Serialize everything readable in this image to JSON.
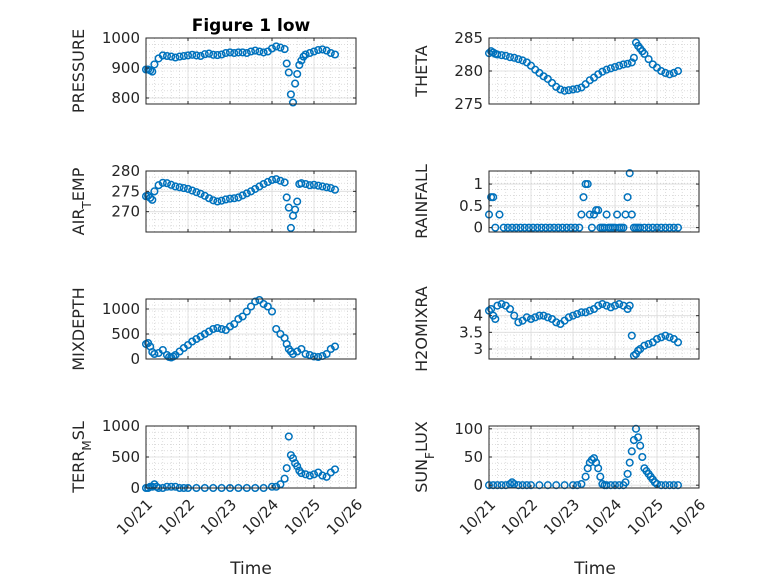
{
  "figure": {
    "title": "Figure 1 low",
    "xlabel": "Time",
    "x_tick_labels": [
      "10/21",
      "10/22",
      "10/23",
      "10/24",
      "10/25",
      "10/26"
    ],
    "marker_color": "#0072BD"
  },
  "chart_data": [
    {
      "type": "scatter",
      "ylabel": "PRESSURE",
      "xlim": [
        0,
        5
      ],
      "ylim": [
        780,
        1000
      ],
      "yticks": [
        800,
        900,
        1000
      ],
      "grid": true,
      "x": [
        0.0,
        0.05,
        0.1,
        0.15,
        0.2,
        0.3,
        0.4,
        0.5,
        0.6,
        0.7,
        0.8,
        0.9,
        1.0,
        1.1,
        1.2,
        1.3,
        1.4,
        1.5,
        1.6,
        1.7,
        1.8,
        1.9,
        2.0,
        2.1,
        2.2,
        2.3,
        2.4,
        2.5,
        2.6,
        2.7,
        2.8,
        2.9,
        3.0,
        3.1,
        3.2,
        3.3,
        3.35,
        3.4,
        3.45,
        3.5,
        3.55,
        3.6,
        3.65,
        3.7,
        3.75,
        3.8,
        3.9,
        4.0,
        4.1,
        4.2,
        4.3,
        4.4,
        4.5
      ],
      "y": [
        895,
        895,
        892,
        888,
        912,
        932,
        942,
        940,
        938,
        935,
        938,
        940,
        942,
        944,
        942,
        940,
        946,
        948,
        944,
        943,
        945,
        950,
        952,
        950,
        952,
        952,
        950,
        955,
        958,
        955,
        952,
        955,
        965,
        972,
        968,
        963,
        915,
        885,
        812,
        785,
        848,
        880,
        910,
        925,
        938,
        945,
        950,
        955,
        960,
        962,
        958,
        950,
        945
      ]
    },
    {
      "type": "scatter",
      "ylabel": "THETA",
      "xlim": [
        0,
        5
      ],
      "ylim": [
        275,
        285
      ],
      "yticks": [
        275,
        280,
        285
      ],
      "grid": true,
      "x": [
        0.0,
        0.05,
        0.1,
        0.15,
        0.2,
        0.3,
        0.4,
        0.5,
        0.6,
        0.7,
        0.8,
        0.9,
        1.0,
        1.1,
        1.2,
        1.3,
        1.4,
        1.5,
        1.6,
        1.7,
        1.8,
        1.9,
        2.0,
        2.1,
        2.2,
        2.3,
        2.4,
        2.5,
        2.6,
        2.7,
        2.8,
        2.9,
        3.0,
        3.1,
        3.2,
        3.3,
        3.4,
        3.45,
        3.5,
        3.55,
        3.6,
        3.65,
        3.7,
        3.8,
        3.9,
        4.0,
        4.1,
        4.2,
        4.3,
        4.4,
        4.5
      ],
      "y": [
        282.7,
        283.0,
        282.8,
        282.6,
        282.5,
        282.4,
        282.3,
        282.1,
        282.0,
        281.8,
        281.6,
        281.3,
        280.8,
        280.2,
        279.7,
        279.2,
        278.8,
        278.2,
        277.6,
        277.2,
        277.0,
        277.1,
        277.2,
        277.3,
        277.5,
        278.0,
        278.6,
        279.0,
        279.5,
        279.9,
        280.2,
        280.4,
        280.6,
        280.8,
        281.0,
        281.1,
        281.3,
        282.0,
        284.3,
        283.8,
        283.4,
        283.0,
        282.6,
        281.8,
        281.0,
        280.5,
        280.0,
        279.7,
        279.5,
        279.7,
        280.0
      ]
    },
    {
      "type": "scatter",
      "ylabel": "AIR_TEMP",
      "xlim": [
        0,
        5
      ],
      "ylim": [
        265,
        280
      ],
      "yticks": [
        270,
        275,
        280
      ],
      "grid": true,
      "x": [
        0.0,
        0.05,
        0.1,
        0.15,
        0.2,
        0.3,
        0.4,
        0.5,
        0.6,
        0.7,
        0.8,
        0.9,
        1.0,
        1.1,
        1.2,
        1.3,
        1.4,
        1.5,
        1.6,
        1.7,
        1.8,
        1.9,
        2.0,
        2.1,
        2.2,
        2.3,
        2.4,
        2.5,
        2.6,
        2.7,
        2.8,
        2.9,
        3.0,
        3.1,
        3.2,
        3.3,
        3.35,
        3.4,
        3.45,
        3.5,
        3.55,
        3.6,
        3.65,
        3.7,
        3.8,
        3.9,
        4.0,
        4.1,
        4.2,
        4.3,
        4.4,
        4.5
      ],
      "y": [
        273.8,
        273.9,
        273.4,
        272.9,
        275.0,
        276.5,
        277.1,
        277.0,
        276.6,
        276.2,
        276.0,
        275.8,
        275.6,
        275.2,
        274.8,
        274.4,
        273.9,
        273.3,
        272.8,
        272.5,
        272.7,
        273.0,
        273.2,
        273.3,
        273.5,
        274.0,
        274.5,
        275.0,
        275.6,
        276.2,
        276.8,
        277.3,
        277.8,
        278.0,
        277.6,
        277.2,
        273.5,
        271.0,
        266.0,
        269.0,
        270.5,
        272.5,
        276.8,
        277.0,
        276.8,
        276.5,
        276.6,
        276.4,
        276.2,
        276.0,
        275.8,
        275.4
      ]
    },
    {
      "type": "scatter",
      "ylabel": "RAINFALL",
      "xlim": [
        0,
        5
      ],
      "ylim": [
        -0.1,
        1.3
      ],
      "yticks": [
        0,
        0.5,
        1
      ],
      "grid": true,
      "x": [
        0.0,
        0.05,
        0.1,
        0.15,
        0.25,
        0.35,
        0.45,
        0.55,
        0.65,
        0.75,
        0.85,
        0.95,
        1.05,
        1.15,
        1.25,
        1.35,
        1.45,
        1.55,
        1.65,
        1.75,
        1.85,
        1.95,
        2.05,
        2.15,
        2.2,
        2.25,
        2.3,
        2.35,
        2.4,
        2.45,
        2.5,
        2.55,
        2.6,
        2.65,
        2.7,
        2.75,
        2.8,
        2.85,
        2.9,
        2.95,
        3.0,
        3.05,
        3.1,
        3.15,
        3.2,
        3.25,
        3.3,
        3.35,
        3.4,
        3.45,
        3.5,
        3.55,
        3.6,
        3.7,
        3.8,
        3.9,
        4.0,
        4.1,
        4.2,
        4.3,
        4.4,
        4.5
      ],
      "y": [
        0.3,
        0.7,
        0.7,
        0.0,
        0.3,
        0.0,
        0.0,
        0.0,
        0.0,
        0.0,
        0.0,
        0.0,
        0.0,
        0.0,
        0.0,
        0.0,
        0.0,
        0.0,
        0.0,
        0.0,
        0.0,
        0.0,
        0.0,
        0.0,
        0.3,
        0.7,
        1.0,
        1.0,
        0.3,
        0.0,
        0.3,
        0.4,
        0.4,
        0.0,
        0.0,
        0.0,
        0.3,
        0.0,
        0.0,
        0.0,
        0.0,
        0.3,
        0.0,
        0.0,
        0.0,
        0.3,
        0.7,
        1.25,
        0.3,
        0.0,
        0.0,
        0.0,
        0.0,
        0.0,
        0.0,
        0.0,
        0.0,
        0.0,
        0.0,
        0.0,
        0.0,
        0.0
      ]
    },
    {
      "type": "scatter",
      "ylabel": "MIXDEPTH",
      "xlim": [
        0,
        5
      ],
      "ylim": [
        0,
        1200
      ],
      "yticks": [
        0,
        500,
        1000
      ],
      "grid": true,
      "x": [
        0.0,
        0.05,
        0.1,
        0.15,
        0.2,
        0.3,
        0.4,
        0.5,
        0.55,
        0.6,
        0.65,
        0.7,
        0.8,
        0.9,
        1.0,
        1.1,
        1.2,
        1.3,
        1.4,
        1.5,
        1.6,
        1.7,
        1.8,
        1.9,
        2.0,
        2.1,
        2.2,
        2.3,
        2.4,
        2.5,
        2.6,
        2.7,
        2.8,
        2.9,
        3.0,
        3.1,
        3.2,
        3.3,
        3.35,
        3.4,
        3.45,
        3.5,
        3.6,
        3.7,
        3.8,
        3.9,
        4.0,
        4.1,
        4.2,
        4.3,
        4.4,
        4.5
      ],
      "y": [
        300,
        320,
        250,
        140,
        100,
        120,
        180,
        80,
        40,
        30,
        50,
        80,
        150,
        220,
        280,
        350,
        400,
        450,
        500,
        550,
        600,
        620,
        600,
        580,
        650,
        700,
        800,
        850,
        950,
        1050,
        1150,
        1180,
        1100,
        1050,
        950,
        600,
        500,
        420,
        300,
        200,
        150,
        100,
        150,
        200,
        100,
        80,
        50,
        40,
        60,
        100,
        200,
        250
      ]
    },
    {
      "type": "scatter",
      "ylabel": "H2OMIXRA",
      "xlim": [
        0,
        5
      ],
      "ylim": [
        2.7,
        4.5
      ],
      "yticks": [
        3,
        3.5,
        4
      ],
      "grid": true,
      "x": [
        0.0,
        0.05,
        0.1,
        0.15,
        0.2,
        0.3,
        0.4,
        0.5,
        0.6,
        0.7,
        0.8,
        0.9,
        1.0,
        1.1,
        1.2,
        1.3,
        1.4,
        1.5,
        1.6,
        1.7,
        1.8,
        1.9,
        2.0,
        2.1,
        2.2,
        2.3,
        2.4,
        2.5,
        2.6,
        2.7,
        2.8,
        2.9,
        3.0,
        3.1,
        3.2,
        3.3,
        3.35,
        3.4,
        3.45,
        3.5,
        3.55,
        3.6,
        3.7,
        3.8,
        3.9,
        4.0,
        4.1,
        4.2,
        4.3,
        4.4,
        4.5
      ],
      "y": [
        4.15,
        4.2,
        4.0,
        3.9,
        4.3,
        4.35,
        4.3,
        4.2,
        4.0,
        3.8,
        3.85,
        3.95,
        3.9,
        3.95,
        4.0,
        4.0,
        3.95,
        3.9,
        3.8,
        3.75,
        3.85,
        3.95,
        4.0,
        4.05,
        4.1,
        4.1,
        4.15,
        4.2,
        4.3,
        4.35,
        4.3,
        4.25,
        4.3,
        4.35,
        4.3,
        4.2,
        4.3,
        3.4,
        2.8,
        2.85,
        2.95,
        3.0,
        3.1,
        3.15,
        3.2,
        3.3,
        3.35,
        3.4,
        3.35,
        3.3,
        3.2
      ]
    },
    {
      "type": "scatter",
      "ylabel": "TERR_MSL",
      "xlim": [
        0,
        5
      ],
      "ylim": [
        0,
        1000
      ],
      "yticks": [
        0,
        500,
        1000
      ],
      "grid": true,
      "x": [
        0.0,
        0.05,
        0.1,
        0.15,
        0.2,
        0.25,
        0.3,
        0.4,
        0.5,
        0.6,
        0.7,
        0.8,
        0.9,
        1.0,
        1.2,
        1.4,
        1.6,
        1.8,
        2.0,
        2.2,
        2.4,
        2.6,
        2.8,
        3.0,
        3.1,
        3.2,
        3.3,
        3.35,
        3.4,
        3.45,
        3.5,
        3.55,
        3.6,
        3.65,
        3.7,
        3.8,
        3.9,
        4.0,
        4.1,
        4.2,
        4.3,
        4.4,
        4.5
      ],
      "y": [
        0,
        0,
        20,
        20,
        60,
        20,
        0,
        0,
        20,
        20,
        20,
        0,
        0,
        0,
        0,
        0,
        0,
        0,
        0,
        0,
        0,
        0,
        0,
        20,
        20,
        60,
        150,
        320,
        830,
        530,
        480,
        400,
        350,
        280,
        240,
        220,
        200,
        220,
        250,
        200,
        180,
        250,
        300
      ]
    },
    {
      "type": "scatter",
      "ylabel": "SUN_FLUX",
      "xlim": [
        0,
        5
      ],
      "ylim": [
        -5,
        105
      ],
      "yticks": [
        0,
        50,
        100
      ],
      "grid": true,
      "x": [
        0.0,
        0.1,
        0.2,
        0.3,
        0.4,
        0.5,
        0.55,
        0.6,
        0.7,
        0.8,
        0.9,
        1.0,
        1.2,
        1.4,
        1.6,
        1.8,
        2.0,
        2.1,
        2.2,
        2.3,
        2.35,
        2.4,
        2.45,
        2.5,
        2.55,
        2.6,
        2.65,
        2.7,
        2.75,
        2.8,
        2.9,
        3.0,
        3.1,
        3.2,
        3.25,
        3.3,
        3.35,
        3.4,
        3.45,
        3.5,
        3.55,
        3.6,
        3.65,
        3.7,
        3.75,
        3.8,
        3.85,
        3.9,
        3.95,
        4.0,
        4.1,
        4.2,
        4.3,
        4.4,
        4.5
      ],
      "y": [
        0,
        0,
        0,
        0,
        0,
        2,
        5,
        2,
        0,
        0,
        0,
        0,
        0,
        0,
        0,
        0,
        0,
        0,
        2,
        15,
        30,
        40,
        45,
        48,
        40,
        30,
        15,
        2,
        0,
        0,
        0,
        0,
        0,
        0,
        5,
        20,
        40,
        60,
        80,
        100,
        85,
        70,
        50,
        30,
        25,
        20,
        15,
        10,
        5,
        2,
        0,
        0,
        0,
        0,
        0
      ]
    }
  ]
}
